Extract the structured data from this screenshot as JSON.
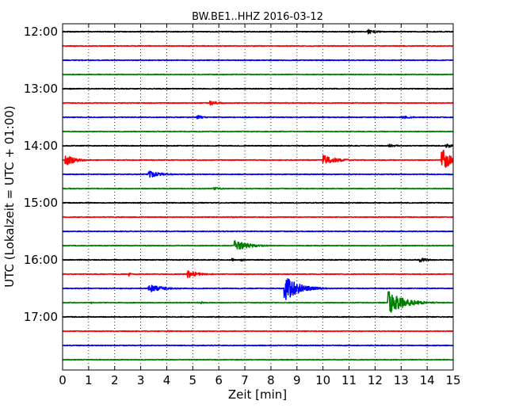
{
  "chart_data": {
    "type": "line",
    "title": "BW.BE1..HHZ 2016-03-12",
    "xlabel": "Zeit  [min]",
    "ylabel": "UTC (Lokalzeit = UTC + 01:00)",
    "xlim": [
      0,
      15
    ],
    "xticks": [
      0,
      1,
      2,
      3,
      4,
      5,
      6,
      7,
      8,
      9,
      10,
      11,
      12,
      13,
      14,
      15
    ],
    "xtick_labels": [
      "0",
      "1",
      "2",
      "3",
      "4",
      "5",
      "6",
      "7",
      "8",
      "9",
      "10",
      "11",
      "12",
      "13",
      "14",
      "15"
    ],
    "ytick_labels": [
      {
        "label": "12:00",
        "trace": 0
      },
      {
        "label": "13:00",
        "trace": 4
      },
      {
        "label": "14:00",
        "trace": 8
      },
      {
        "label": "15:00",
        "trace": 12
      },
      {
        "label": "16:00",
        "trace": 16
      },
      {
        "label": "17:00",
        "trace": 20
      }
    ],
    "trace_minutes": 15,
    "grid": "vertical dotted",
    "colors": [
      "#000000",
      "#ff0000",
      "#0000ff",
      "#008000"
    ],
    "traces": [
      {
        "start": "12:00",
        "color": "#000000",
        "events": [
          {
            "t": 11.7,
            "amp": 0.35,
            "dur": 0.35
          },
          {
            "t": 11.1,
            "amp": 0.12,
            "dur": 0.2
          }
        ]
      },
      {
        "start": "12:15",
        "color": "#ff0000",
        "events": [
          {
            "t": 0.45,
            "amp": 0.18,
            "dur": 0.05
          }
        ]
      },
      {
        "start": "12:30",
        "color": "#0000ff",
        "events": [
          {
            "t": 14.6,
            "amp": 0.06,
            "dur": 0.2
          }
        ]
      },
      {
        "start": "12:45",
        "color": "#008000",
        "events": []
      },
      {
        "start": "13:00",
        "color": "#000000",
        "events": [
          {
            "t": 0.25,
            "amp": 0.15,
            "dur": 0.05
          },
          {
            "t": 7.0,
            "amp": 0.08,
            "dur": 0.1
          }
        ]
      },
      {
        "start": "13:15",
        "color": "#ff0000",
        "events": [
          {
            "t": 5.65,
            "amp": 0.3,
            "dur": 0.4
          },
          {
            "t": 7.95,
            "amp": 0.12,
            "dur": 0.2
          }
        ]
      },
      {
        "start": "13:30",
        "color": "#0000ff",
        "events": [
          {
            "t": 5.15,
            "amp": 0.3,
            "dur": 0.3
          },
          {
            "t": 13.0,
            "amp": 0.28,
            "dur": 0.35
          }
        ]
      },
      {
        "start": "13:45",
        "color": "#008000",
        "events": []
      },
      {
        "start": "14:00",
        "color": "#000000",
        "events": [
          {
            "t": 12.5,
            "amp": 0.28,
            "dur": 0.3
          },
          {
            "t": 14.7,
            "amp": 0.3,
            "dur": 0.4
          }
        ]
      },
      {
        "start": "14:15",
        "color": "#ff0000",
        "events": [
          {
            "t": 0.1,
            "amp": 0.9,
            "dur": 0.35
          },
          {
            "t": 10.0,
            "amp": 0.75,
            "dur": 0.5
          },
          {
            "t": 14.55,
            "amp": 1.9,
            "dur": 0.3
          }
        ]
      },
      {
        "start": "14:30",
        "color": "#0000ff",
        "events": [
          {
            "t": 3.3,
            "amp": 0.5,
            "dur": 0.5
          }
        ]
      },
      {
        "start": "14:45",
        "color": "#008000",
        "events": [
          {
            "t": 5.8,
            "amp": 0.2,
            "dur": 0.4
          }
        ]
      },
      {
        "start": "15:00",
        "color": "#000000",
        "events": [
          {
            "t": 5.2,
            "amp": 0.06,
            "dur": 0.4
          },
          {
            "t": 8.4,
            "amp": 0.06,
            "dur": 0.4
          }
        ]
      },
      {
        "start": "15:15",
        "color": "#ff0000",
        "events": [
          {
            "t": 6.5,
            "amp": 0.1,
            "dur": 0.8
          }
        ]
      },
      {
        "start": "15:30",
        "color": "#0000ff",
        "events": []
      },
      {
        "start": "15:45",
        "color": "#008000",
        "events": [
          {
            "t": 6.6,
            "amp": 0.7,
            "dur": 0.6
          }
        ]
      },
      {
        "start": "16:00",
        "color": "#000000",
        "events": [
          {
            "t": 6.5,
            "amp": 0.25,
            "dur": 0.1
          },
          {
            "t": 6.85,
            "amp": 0.3,
            "dur": 0.08
          },
          {
            "t": 13.7,
            "amp": 0.3,
            "dur": 0.4
          }
        ]
      },
      {
        "start": "16:15",
        "color": "#ff0000",
        "events": [
          {
            "t": 2.55,
            "amp": 0.28,
            "dur": 0.08
          },
          {
            "t": 4.8,
            "amp": 0.55,
            "dur": 0.4
          },
          {
            "t": 5.7,
            "amp": 0.12,
            "dur": 0.15
          }
        ]
      },
      {
        "start": "16:30",
        "color": "#0000ff",
        "events": [
          {
            "t": 3.3,
            "amp": 0.55,
            "dur": 0.6
          },
          {
            "t": 8.5,
            "amp": 2.0,
            "dur": 0.5
          }
        ]
      },
      {
        "start": "16:45",
        "color": "#008000",
        "events": [
          {
            "t": 1.1,
            "amp": 0.15,
            "dur": 0.05
          },
          {
            "t": 5.3,
            "amp": 0.2,
            "dur": 0.1
          },
          {
            "t": 12.5,
            "amp": 1.7,
            "dur": 0.6
          }
        ]
      },
      {
        "start": "17:00",
        "color": "#000000",
        "events": []
      },
      {
        "start": "17:15",
        "color": "#ff0000",
        "events": [
          {
            "t": 4.0,
            "amp": 0.12,
            "dur": 0.3
          }
        ]
      },
      {
        "start": "17:30",
        "color": "#0000ff",
        "events": []
      },
      {
        "start": "17:45",
        "color": "#008000",
        "events": []
      }
    ]
  }
}
